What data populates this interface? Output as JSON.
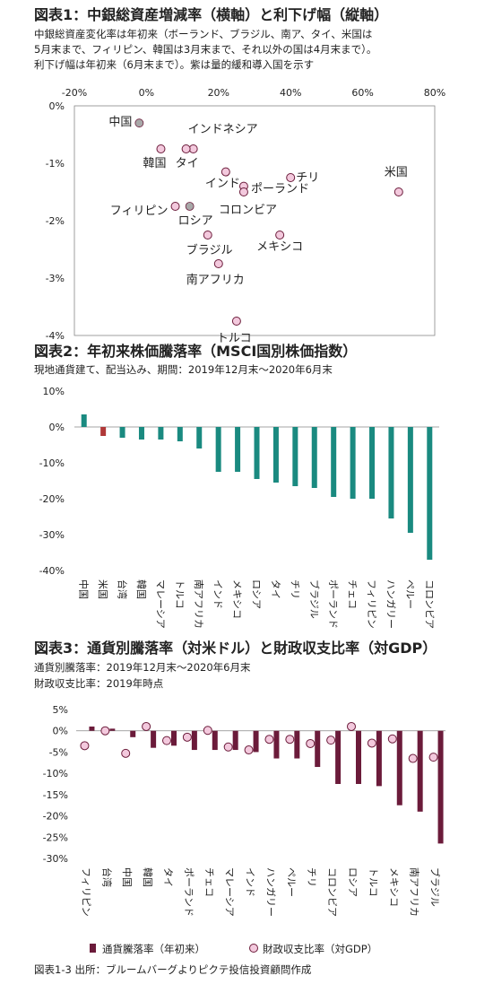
{
  "colors": {
    "teal": "#1a8a80",
    "red": "#b03838",
    "maroon": "#6b1b3a",
    "pink": "#f3c9dd",
    "gray": "#a8a8a8",
    "axis": "#888888"
  },
  "chart_data": [
    {
      "type": "scatter",
      "title": "図表1：中銀総資産増減率（横軸）と利下げ幅（縦軸）",
      "notes": [
        "中銀総資産変化率は年初来（ボーランド、ブラジル、南ア、タイ、米国は",
        "5月末まで、フィリピン、韓国は3月末まで、それ以外の国は4月末まで）。",
        "利下げ幅は年初来（6月末まで）。紫は量的緩和導入国を示す"
      ],
      "xlim": [
        -20,
        80
      ],
      "ylim": [
        -4,
        0
      ],
      "x_ticks": [
        "-20%",
        "0%",
        "20%",
        "40%",
        "60%",
        "80%"
      ],
      "y_ticks": [
        "0%",
        "-1%",
        "-2%",
        "-3%",
        "-4%"
      ],
      "points": [
        {
          "label": "中国",
          "x": -2,
          "y": -0.3,
          "qe": false
        },
        {
          "label": "インドネシア",
          "x": 13,
          "y": -0.75,
          "qe": true
        },
        {
          "label": "韓国",
          "x": 4,
          "y": -0.75,
          "qe": true
        },
        {
          "label": "タイ",
          "x": 11,
          "y": -0.75,
          "qe": true
        },
        {
          "label": "チリ",
          "x": 40,
          "y": -1.25,
          "qe": true
        },
        {
          "label": "米国",
          "x": 70,
          "y": -1.5,
          "qe": true
        },
        {
          "label": "インド",
          "x": 22,
          "y": -1.15,
          "qe": true
        },
        {
          "label": "ポーランド",
          "x": 27,
          "y": -1.4,
          "qe": true
        },
        {
          "label": "コロンビア",
          "x": 27,
          "y": -1.5,
          "qe": true
        },
        {
          "label": "フィリピン",
          "x": 8,
          "y": -1.75,
          "qe": true
        },
        {
          "label": "ロシア",
          "x": 12,
          "y": -1.75,
          "qe": false
        },
        {
          "label": "ブラジル",
          "x": 17,
          "y": -2.25,
          "qe": true
        },
        {
          "label": "メキシコ",
          "x": 37,
          "y": -2.25,
          "qe": true
        },
        {
          "label": "南アフリカ",
          "x": 20,
          "y": -2.75,
          "qe": true
        },
        {
          "label": "トルコ",
          "x": 25,
          "y": -3.75,
          "qe": true
        }
      ]
    },
    {
      "type": "bar",
      "title": "図表2：年初来株価騰落率（MSCI国別株価指数）",
      "notes": [
        "現地通貨建て、配当込み、期間：2019年12月末～2020年6月末"
      ],
      "ylim": [
        -40,
        10
      ],
      "y_ticks": [
        "10%",
        "0%",
        "-10%",
        "-20%",
        "-30%",
        "-40%"
      ],
      "categories": [
        "中国",
        "米国",
        "台湾",
        "韓国",
        "マレーシア",
        "トルコ",
        "南アフリカ",
        "インド",
        "メキシコ",
        "ロシア",
        "タイ",
        "チリ",
        "ブラジル",
        "ポーランド",
        "チェコ",
        "フィリピン",
        "ハンガリー",
        "ペルー",
        "コロンビア"
      ],
      "values": [
        3.5,
        -2.5,
        -3,
        -3.5,
        -3.5,
        -4,
        -6,
        -12.5,
        -12.5,
        -14.5,
        -15.5,
        -16.5,
        -17,
        -19.5,
        -20,
        -20,
        -25.5,
        -29.5,
        -37
      ]
    },
    {
      "type": "bar",
      "title": "図表3：通貨別騰落率（対米ドル）と財政収支比率（対GDP）",
      "notes": [
        "通貨別騰落率：2019年12月末～2020年6月末",
        "財政収支比率：2019年時点"
      ],
      "ylim": [
        -30,
        5
      ],
      "y_ticks": [
        "5%",
        "0%",
        "-5%",
        "-10%",
        "-15%",
        "-20%",
        "-25%",
        "-30%"
      ],
      "categories": [
        "フィリピン",
        "台湾",
        "中国",
        "韓国",
        "タイ",
        "ポーランド",
        "チェコ",
        "マレーシア",
        "インド",
        "ハンガリー",
        "ペルー",
        "チリ",
        "コロンビア",
        "ロシア",
        "トルコ",
        "メキシコ",
        "南アフリカ",
        "ブラジル"
      ],
      "series": [
        {
          "name": "通貨騰落率（年初来）",
          "values": [
            1,
            0.5,
            -1.5,
            -4,
            -3.5,
            -4.5,
            -4.5,
            -4.5,
            -5,
            -6.5,
            -6.5,
            -8.5,
            -12.5,
            -12.5,
            -13,
            -17.5,
            -19,
            -26.5
          ]
        },
        {
          "name": "財政収支比率（対GDP）",
          "values": [
            -3.5,
            0,
            -5.3,
            1,
            -2.3,
            -1.5,
            0.1,
            -3.8,
            -4.5,
            -2,
            -2,
            -3,
            -2.2,
            1,
            -2.9,
            -1.9,
            -6.5,
            -6.2
          ]
        }
      ]
    }
  ],
  "legend3": {
    "bar_label": "通貨騰落率（年初来）",
    "dot_label": "財政収支比率（対GDP）"
  },
  "footer": "図表1-3 出所：ブルームバーグよりピクテ投信投資顧問作成"
}
